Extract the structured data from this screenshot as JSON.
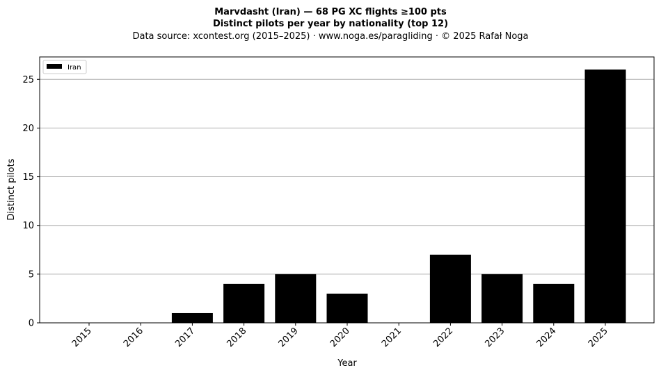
{
  "chart_data": {
    "type": "bar",
    "title": "Marvdasht (Iran)  —  68 PG XC flights ≥100 pts",
    "subtitle": "Distinct pilots per year by nationality (top 12)",
    "source": "Data source: xcontest.org (2015–2025)  ·  www.noga.es/paragliding  ·  © 2025 Rafał Noga",
    "xlabel": "Year",
    "ylabel": "Distinct pilots",
    "categories": [
      "2015",
      "2016",
      "2017",
      "2018",
      "2019",
      "2020",
      "2021",
      "2022",
      "2023",
      "2024",
      "2025"
    ],
    "series": [
      {
        "name": "Iran",
        "color": "#000000",
        "values": [
          0,
          0,
          1,
          4,
          5,
          3,
          0,
          7,
          5,
          4,
          26
        ]
      }
    ],
    "ylim": [
      0,
      27.3
    ],
    "yticks": [
      0,
      5,
      10,
      15,
      20,
      25
    ],
    "grid": "y",
    "legend_position": "top-left",
    "grid_color": "#b0b0b0"
  }
}
